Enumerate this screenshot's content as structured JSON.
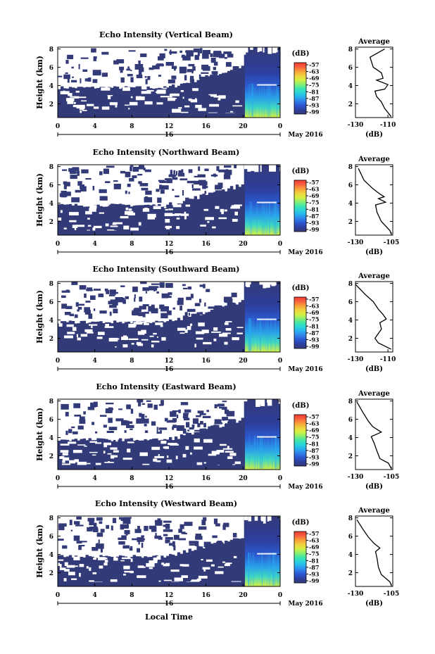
{
  "figure": {
    "x_axis_title": "Local Time",
    "date_label": "May 2016",
    "colorbar_unit": "(dB)",
    "colorbar_ticks": [
      "-57",
      "-63",
      "-69",
      "-75",
      "-81",
      "-87",
      "-93",
      "-99"
    ],
    "avg_title": "Average",
    "avg_xlabel": "(dB)",
    "colormap": [
      "#333a78",
      "#2d3f9e",
      "#2b56d0",
      "#2f80e8",
      "#28b0f0",
      "#2ad4d8",
      "#40e6a8",
      "#8cf070",
      "#d8f040",
      "#f0d040",
      "#f8a038",
      "#f86040",
      "#f03a30"
    ]
  },
  "chart_data": [
    {
      "type": "heatmap",
      "title": "Echo Intensity (Vertical Beam)",
      "ylabel": "Height (km)",
      "xlabel": "Local Time",
      "x_ticks": [
        "0",
        "4",
        "8",
        "12",
        "16",
        "20",
        "0"
      ],
      "x_day_label": "16",
      "y_ticks": [
        "2",
        "4",
        "6",
        "8"
      ],
      "ylim": [
        0.5,
        8.2
      ],
      "colorbar": {
        "unit": "(dB)",
        "ticks": [
          "-57",
          "-63",
          "-69",
          "-75",
          "-81",
          "-87",
          "-93",
          "-99"
        ]
      },
      "average_profile": {
        "title": "Average",
        "xlabel": "(dB)",
        "x_ticks": [
          "-130",
          "-110"
        ],
        "xlim": [
          -130,
          -107
        ],
        "y_ticks": [
          "2",
          "4",
          "6",
          "8"
        ],
        "points": [
          [
            -112,
            8.0
          ],
          [
            -121,
            7.1
          ],
          [
            -119,
            6.0
          ],
          [
            -114,
            5.4
          ],
          [
            -113,
            4.8
          ],
          [
            -117,
            4.6
          ],
          [
            -110,
            4.1
          ],
          [
            -112,
            3.6
          ],
          [
            -118,
            3.4
          ],
          [
            -117,
            2.8
          ],
          [
            -114,
            2.2
          ],
          [
            -112,
            1.5
          ],
          [
            -108,
            0.6
          ]
        ]
      }
    },
    {
      "type": "heatmap",
      "title": "Echo Intensity (Northward Beam)",
      "ylabel": "Height (km)",
      "xlabel": "Local Time",
      "x_ticks": [
        "0",
        "4",
        "8",
        "12",
        "16",
        "20",
        "0"
      ],
      "x_day_label": "16",
      "y_ticks": [
        "2",
        "4",
        "6",
        "8"
      ],
      "ylim": [
        0.5,
        8.2
      ],
      "colorbar": {
        "unit": "(dB)",
        "ticks": [
          "-57",
          "-63",
          "-69",
          "-75",
          "-81",
          "-87",
          "-93",
          "-99"
        ]
      },
      "average_profile": {
        "title": "Average",
        "xlabel": "(dB)",
        "x_ticks": [
          "-130",
          "-105"
        ],
        "xlim": [
          -130,
          -104
        ],
        "y_ticks": [
          "2",
          "4",
          "6",
          "8"
        ],
        "points": [
          [
            -128,
            7.8
          ],
          [
            -124,
            6.5
          ],
          [
            -118,
            5.6
          ],
          [
            -113,
            5.0
          ],
          [
            -110,
            4.7
          ],
          [
            -114,
            4.5
          ],
          [
            -109,
            4.1
          ],
          [
            -116,
            3.8
          ],
          [
            -115,
            3.0
          ],
          [
            -112,
            2.0
          ],
          [
            -106,
            1.0
          ],
          [
            -105,
            0.6
          ]
        ]
      }
    },
    {
      "type": "heatmap",
      "title": "Echo Intensity (Southward Beam)",
      "ylabel": "Height (km)",
      "xlabel": "Local Time",
      "x_ticks": [
        "0",
        "4",
        "8",
        "12",
        "16",
        "20",
        "0"
      ],
      "x_day_label": "16",
      "y_ticks": [
        "2",
        "4",
        "6",
        "8"
      ],
      "ylim": [
        0.5,
        8.2
      ],
      "colorbar": {
        "unit": "(dB)",
        "ticks": [
          "-57",
          "-63",
          "-69",
          "-75",
          "-81",
          "-87",
          "-93",
          "-99"
        ]
      },
      "average_profile": {
        "title": "Average",
        "xlabel": "(dB)",
        "x_ticks": [
          "-130",
          "-110"
        ],
        "xlim": [
          -130,
          -107
        ],
        "y_ticks": [
          "2",
          "4",
          "6",
          "8"
        ],
        "points": [
          [
            -130,
            7.9
          ],
          [
            -124,
            6.8
          ],
          [
            -119,
            6.0
          ],
          [
            -116,
            5.2
          ],
          [
            -113,
            4.6
          ],
          [
            -111,
            4.1
          ],
          [
            -115,
            3.7
          ],
          [
            -114,
            3.0
          ],
          [
            -118,
            2.0
          ],
          [
            -116,
            1.5
          ],
          [
            -108,
            0.8
          ]
        ]
      }
    },
    {
      "type": "heatmap",
      "title": "Echo Intensity (Eastward Beam)",
      "ylabel": "Height (km)",
      "xlabel": "Local Time",
      "x_ticks": [
        "0",
        "4",
        "8",
        "12",
        "16",
        "20",
        "0"
      ],
      "x_day_label": "16",
      "y_ticks": [
        "2",
        "4",
        "6",
        "8"
      ],
      "ylim": [
        0.5,
        8.2
      ],
      "colorbar": {
        "unit": "(dB)",
        "ticks": [
          "-57",
          "-63",
          "-69",
          "-75",
          "-81",
          "-87",
          "-93",
          "-99"
        ]
      },
      "average_profile": {
        "title": "Average",
        "xlabel": "(dB)",
        "x_ticks": [
          "-130",
          "-105"
        ],
        "xlim": [
          -130,
          -104
        ],
        "y_ticks": [
          "2",
          "4",
          "6",
          "8"
        ],
        "points": [
          [
            -129,
            7.9
          ],
          [
            -125,
            6.8
          ],
          [
            -121,
            5.8
          ],
          [
            -118,
            5.2
          ],
          [
            -112,
            4.6
          ],
          [
            -119,
            4.1
          ],
          [
            -117,
            3.4
          ],
          [
            -115,
            2.5
          ],
          [
            -113,
            1.7
          ],
          [
            -107,
            1.2
          ],
          [
            -105,
            0.6
          ]
        ]
      }
    },
    {
      "type": "heatmap",
      "title": "Echo Intensity (Westward Beam)",
      "ylabel": "Height (km)",
      "xlabel": "Local Time",
      "x_ticks": [
        "0",
        "4",
        "8",
        "12",
        "16",
        "20",
        "0"
      ],
      "x_day_label": "16",
      "y_ticks": [
        "2",
        "4",
        "6",
        "8"
      ],
      "ylim": [
        0.5,
        8.2
      ],
      "colorbar": {
        "unit": "(dB)",
        "ticks": [
          "-57",
          "-63",
          "-69",
          "-75",
          "-81",
          "-87",
          "-93",
          "-99"
        ]
      },
      "average_profile": {
        "title": "Average",
        "xlabel": "(dB)",
        "x_ticks": [
          "-130",
          "-105"
        ],
        "xlim": [
          -130,
          -104
        ],
        "y_ticks": [
          "2",
          "4",
          "6",
          "8"
        ],
        "points": [
          [
            -129,
            7.8
          ],
          [
            -125,
            6.8
          ],
          [
            -121,
            5.9
          ],
          [
            -117,
            5.2
          ],
          [
            -113,
            4.7
          ],
          [
            -116,
            4.3
          ],
          [
            -115,
            3.6
          ],
          [
            -114,
            2.6
          ],
          [
            -112,
            1.8
          ],
          [
            -106,
            1.0
          ],
          [
            -105,
            0.6
          ]
        ]
      }
    }
  ]
}
